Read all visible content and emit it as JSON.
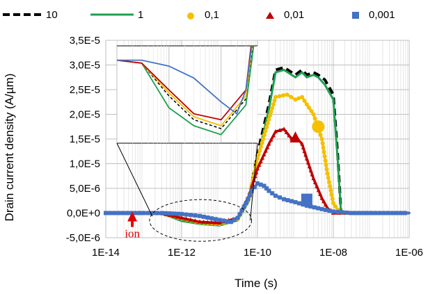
{
  "chart_data": {
    "type": "line",
    "title": "",
    "xlabel": "Time (s)",
    "ylabel": "Drain current density (A/µm)",
    "x_scale": "log",
    "xlim": [
      1e-14,
      1e-06
    ],
    "ylim": [
      -5e-06,
      3.5e-05
    ],
    "x_ticks": [
      {
        "value": 1e-14,
        "label": "1E-14"
      },
      {
        "value": 1e-12,
        "label": "1E-12"
      },
      {
        "value": 1e-10,
        "label": "1E-10"
      },
      {
        "value": 1e-08,
        "label": "1E-08"
      },
      {
        "value": 1e-06,
        "label": "1E-06"
      }
    ],
    "y_ticks": [
      {
        "value": -5e-06,
        "label": "-5,0E-6"
      },
      {
        "value": 0,
        "label": "0,0E+0"
      },
      {
        "value": 5e-06,
        "label": "5,0E-6"
      },
      {
        "value": 1e-05,
        "label": "1,0E-5"
      },
      {
        "value": 1.5e-05,
        "label": "1,5E-5"
      },
      {
        "value": 2e-05,
        "label": "2,0E-5"
      },
      {
        "value": 2.5e-05,
        "label": "2,5E-5"
      },
      {
        "value": 3e-05,
        "label": "3,0E-5"
      },
      {
        "value": 3.5e-05,
        "label": "3,5E-5"
      }
    ],
    "grid": true,
    "legend_position": "top",
    "series": [
      {
        "name": "10",
        "style": "dashed",
        "color": "#000000",
        "x": [
          1e-14,
          1e-13,
          3e-13,
          1e-12,
          3e-12,
          1e-11,
          3e-11,
          6e-11,
          1e-10,
          2e-10,
          3e-10,
          5e-10,
          1e-09,
          1.5e-09,
          2e-09,
          3e-09,
          4e-09,
          6e-09,
          1e-08,
          1.3e-08,
          1.6e-08,
          1e-07,
          1e-06
        ],
        "y": [
          0,
          0,
          -1e-07,
          -1.2e-06,
          -2e-06,
          -2.3e-06,
          -1.3e-06,
          3e-06,
          1.2e-05,
          2.2e-05,
          2.9e-05,
          2.95e-05,
          2.8e-05,
          2.9e-05,
          2.8e-05,
          2.85e-05,
          2.8e-05,
          2.7e-05,
          2.4e-05,
          1.2e-05,
          0,
          0,
          0
        ]
      },
      {
        "name": "1",
        "style": "solid",
        "color": "#1fa04f",
        "x": [
          1e-14,
          1e-13,
          3e-13,
          1e-12,
          3e-12,
          1e-11,
          3e-11,
          6e-11,
          1e-10,
          2e-10,
          3e-10,
          5e-10,
          1e-09,
          1.5e-09,
          2e-09,
          3e-09,
          4e-09,
          6e-09,
          1e-08,
          1.3e-08,
          1.6e-08,
          1e-07,
          1e-06
        ],
        "y": [
          0,
          0,
          -1e-07,
          -1.6e-06,
          -2.2e-06,
          -2.5e-06,
          -1.5e-06,
          2.5e-06,
          1.1e-05,
          2.1e-05,
          2.85e-05,
          2.9e-05,
          2.75e-05,
          2.85e-05,
          2.75e-05,
          2.8e-05,
          2.75e-05,
          2.6e-05,
          2.3e-05,
          1.1e-05,
          0,
          0,
          0
        ]
      },
      {
        "name": "0,1",
        "style": "dots",
        "color": "#f5c000",
        "x": [
          1e-14,
          1e-13,
          3e-13,
          1e-12,
          3e-12,
          1e-11,
          3e-11,
          6e-11,
          1e-10,
          2e-10,
          3e-10,
          6e-10,
          1e-09,
          1.5e-09,
          2e-09,
          3e-09,
          5e-09,
          7e-09,
          1e-08,
          1.5e-08,
          1e-07,
          1e-06
        ],
        "y": [
          0,
          0,
          -1e-07,
          -1.1e-06,
          -1.9e-06,
          -2.2e-06,
          -1.2e-06,
          3.2e-06,
          1.1e-05,
          1.9e-05,
          2.35e-05,
          2.4e-05,
          2.3e-05,
          2.35e-05,
          2.2e-05,
          2e-05,
          1.5e-05,
          8e-06,
          2e-06,
          0,
          0,
          0
        ]
      },
      {
        "name": "0,01",
        "style": "triangles",
        "color": "#c00000",
        "x": [
          1e-14,
          1e-13,
          3e-13,
          1e-12,
          3e-12,
          1e-11,
          3e-11,
          6e-11,
          1e-10,
          2e-10,
          3e-10,
          5e-10,
          8e-10,
          1e-09,
          1.5e-09,
          2e-09,
          3e-09,
          5e-09,
          7e-09,
          1e-08,
          1e-07,
          1e-06
        ],
        "y": [
          0,
          0,
          -1e-07,
          -1e-06,
          -1.8e-06,
          -2e-06,
          -1e-06,
          3.5e-06,
          9e-06,
          1.4e-05,
          1.65e-05,
          1.7e-05,
          1.5e-05,
          1.55e-05,
          1.4e-05,
          1.1e-05,
          7e-06,
          3e-06,
          1e-06,
          0,
          0,
          0
        ]
      },
      {
        "name": "0,001",
        "style": "squares",
        "color": "#4472c4",
        "x": [
          1e-14,
          1e-13,
          3e-13,
          1e-12,
          3e-12,
          1e-11,
          2e-11,
          3e-11,
          5e-11,
          7e-11,
          1e-10,
          1.5e-10,
          2e-10,
          3e-10,
          5e-10,
          1e-09,
          2e-09,
          5e-09,
          1e-08,
          3e-08,
          1e-07,
          1e-06
        ],
        "y": [
          0,
          0,
          0,
          -2e-07,
          -6e-07,
          -1.4e-06,
          -1.8e-06,
          -1e-06,
          2e-06,
          4.5e-06,
          6e-06,
          5.5e-06,
          4.5e-06,
          3.5e-06,
          2.8e-06,
          2.2e-06,
          1.5e-06,
          8e-07,
          3e-07,
          0,
          0,
          0
        ]
      }
    ],
    "annotations": [
      {
        "text": "ion",
        "color": "#e00000",
        "x": 5e-14,
        "y": 0
      }
    ],
    "inset": {
      "description_free": true,
      "x_range": [
        1e-13,
        5e-11
      ],
      "y_range": [
        -2.6e-06,
        2e-07
      ]
    }
  }
}
